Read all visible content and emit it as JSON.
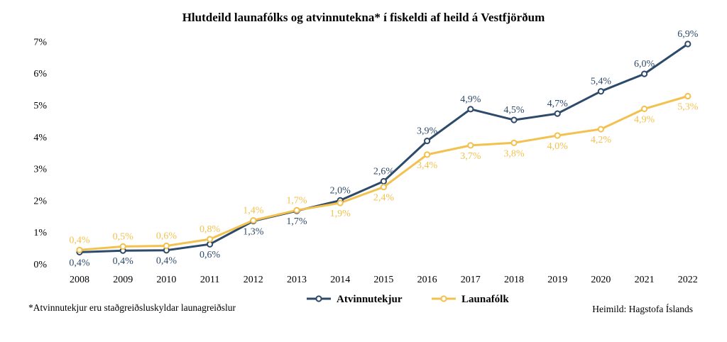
{
  "chart_data": {
    "type": "line",
    "title": "Hlutdeild launafólks og atvinnutekna* í fiskeldi af heild á Vestfjörðum",
    "categories": [
      "2008",
      "2009",
      "2010",
      "2011",
      "2012",
      "2013",
      "2014",
      "2015",
      "2016",
      "2017",
      "2018",
      "2019",
      "2020",
      "2021",
      "2022"
    ],
    "ylim": [
      0,
      7
    ],
    "yticks": [
      "0%",
      "1%",
      "2%",
      "3%",
      "4%",
      "5%",
      "6%",
      "7%"
    ],
    "grid": false,
    "legend_position": "bottom",
    "series": [
      {
        "name": "Atvinnutekjur",
        "color": "#2E4A6B",
        "values": [
          0.37,
          0.42,
          0.43,
          0.62,
          1.35,
          1.67,
          2.0,
          2.6,
          3.87,
          4.87,
          4.53,
          4.73,
          5.43,
          5.98,
          6.92
        ],
        "labels": [
          "0,4%",
          "0,4%",
          "0,4%",
          "0,6%",
          "1,3%",
          "1,7%",
          "2,0%",
          "2,6%",
          "3,9%",
          "4,9%",
          "4,5%",
          "4,7%",
          "5,4%",
          "6,0%",
          "6,9%"
        ]
      },
      {
        "name": "Launafólk",
        "color": "#F2C14E",
        "values": [
          0.44,
          0.55,
          0.57,
          0.78,
          1.37,
          1.69,
          1.92,
          2.42,
          3.44,
          3.73,
          3.81,
          4.04,
          4.24,
          4.88,
          5.28
        ],
        "labels": [
          "0,4%",
          "0,5%",
          "0,6%",
          "0,8%",
          "1,4%",
          "1,7%",
          "1,9%",
          "2,4%",
          "3,4%",
          "3,7%",
          "3,8%",
          "4,0%",
          "4,2%",
          "4,9%",
          "5,3%"
        ]
      }
    ]
  },
  "footnote": "*Atvinnutekjur eru staðgreiðsluskyldar launagreiðslur",
  "source": "Heimild: Hagstofa Íslands"
}
